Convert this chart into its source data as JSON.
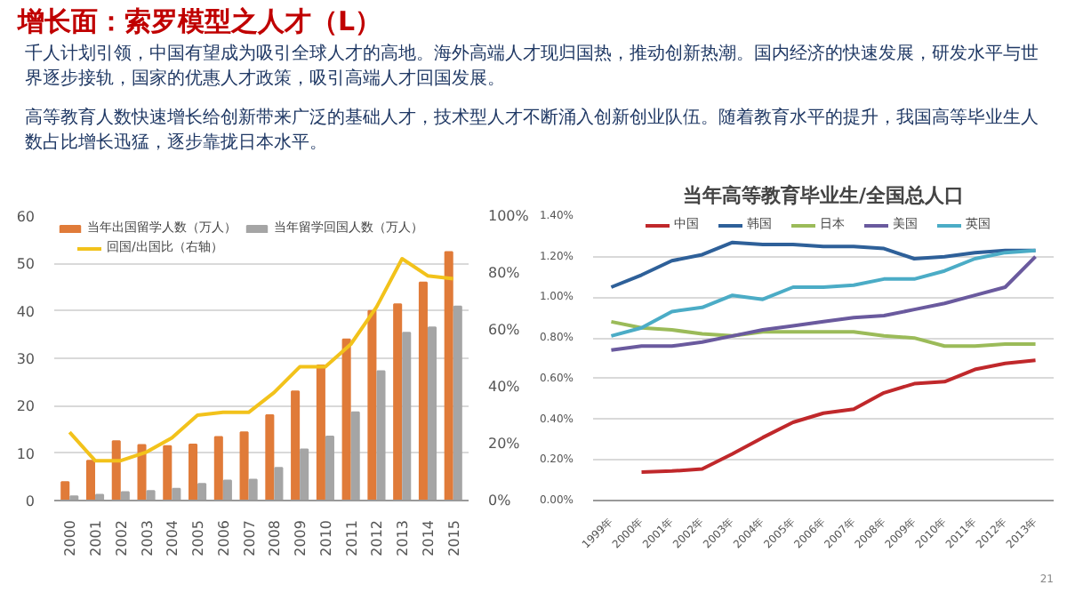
{
  "chart_data": [
    {
      "type": "bar",
      "title": "增长面：索罗模型之人才（L）",
      "annotations": [
        "千人计划引领，中国有望成为吸引全球人才的高地。海外高端人才现归国热，推动创新热潮。国内经济的快速发展，研发水平与世界逐步接轨，国家的优惠人才政策，吸引高端人才回国发展。",
        "高等教育人数快速增长给创新带来广泛的基础人才，技术型人才不断涌入创新创业队伍。随着教育水平的提升，我国高等毕业生人数占比增长迅猛，逐步靠拢日本水平。"
      ],
      "categories": [
        "2000",
        "2001",
        "2002",
        "2003",
        "2004",
        "2005",
        "2006",
        "2007",
        "2008",
        "2009",
        "2010",
        "2011",
        "2012",
        "2013",
        "2014",
        "2015"
      ],
      "series": [
        {
          "name": "当年出国留学人数（万人）",
          "color": "#e07b39",
          "values": [
            3.9,
            8.4,
            12.5,
            11.7,
            11.5,
            11.8,
            13.4,
            14.4,
            18.0,
            23.0,
            28.5,
            34.0,
            40.0,
            41.4,
            46.0,
            52.4
          ]
        },
        {
          "name": "当年留学回国人数（万人）",
          "color": "#a5a5a5",
          "values": [
            0.9,
            1.2,
            1.8,
            2.0,
            2.5,
            3.5,
            4.2,
            4.4,
            6.9,
            10.8,
            13.5,
            18.6,
            27.3,
            35.4,
            36.5,
            40.9
          ]
        },
        {
          "name": "回国/出国比（右轴）",
          "color": "#f2c21b",
          "type": "line",
          "axis": "y2",
          "values": [
            24,
            14,
            14,
            17,
            22,
            30,
            31,
            31,
            38,
            47,
            47,
            55,
            68,
            85,
            79,
            78
          ]
        }
      ],
      "ylim": [
        0,
        60
      ],
      "yticks": [
        0,
        10,
        20,
        30,
        40,
        50,
        60
      ],
      "y2lim": [
        0,
        100
      ],
      "y2ticks": [
        {
          "value": 0,
          "label": "0%"
        },
        {
          "value": 20,
          "label": "20%"
        },
        {
          "value": 40,
          "label": "40%"
        },
        {
          "value": 60,
          "label": "60%"
        },
        {
          "value": 80,
          "label": "80%"
        },
        {
          "value": 100,
          "label": "100%"
        }
      ],
      "grid": "y",
      "legend": "top"
    },
    {
      "type": "line",
      "title": "当年高等教育毕业生/全国总人口",
      "annotations": [
        "21"
      ],
      "categories": [
        "1999年",
        "2000年",
        "2001年",
        "2002年",
        "2003年",
        "2004年",
        "2005年",
        "2006年",
        "2007年",
        "2008年",
        "2009年",
        "2010年",
        "2011年",
        "2012年",
        "2013年"
      ],
      "series": [
        {
          "name": "中国",
          "color": "#c0282b",
          "values": [
            null,
            0.14,
            0.145,
            0.155,
            0.23,
            0.31,
            0.385,
            0.43,
            0.45,
            0.53,
            0.575,
            0.585,
            0.645,
            0.675,
            0.69
          ]
        },
        {
          "name": "韩国",
          "color": "#2e6099",
          "values": [
            1.05,
            1.11,
            1.18,
            1.21,
            1.27,
            1.26,
            1.26,
            1.25,
            1.25,
            1.24,
            1.19,
            1.2,
            1.22,
            1.23,
            1.23
          ]
        },
        {
          "name": "日本",
          "color": "#9bbb59",
          "values": [
            0.88,
            0.85,
            0.84,
            0.82,
            0.81,
            0.83,
            0.83,
            0.83,
            0.83,
            0.81,
            0.8,
            0.76,
            0.76,
            0.77,
            0.77
          ]
        },
        {
          "name": "美国",
          "color": "#6a5a9e",
          "values": [
            0.74,
            0.76,
            0.76,
            0.78,
            0.81,
            0.84,
            0.86,
            0.88,
            0.9,
            0.91,
            0.94,
            0.97,
            1.01,
            1.05,
            1.2
          ]
        },
        {
          "name": "英国",
          "color": "#4bacc6",
          "values": [
            0.81,
            0.85,
            0.93,
            0.95,
            1.01,
            0.99,
            1.05,
            1.05,
            1.06,
            1.09,
            1.09,
            1.13,
            1.19,
            1.22,
            1.23
          ]
        }
      ],
      "ylim": [
        0,
        1.4
      ],
      "yticks": [
        {
          "value": 0,
          "label": "0.00%"
        },
        {
          "value": 0.2,
          "label": "0.20%"
        },
        {
          "value": 0.4,
          "label": "0.40%"
        },
        {
          "value": 0.6,
          "label": "0.60%"
        },
        {
          "value": 0.8,
          "label": "0.80%"
        },
        {
          "value": 1.0,
          "label": "1.00%"
        },
        {
          "value": 1.2,
          "label": "1.20%"
        },
        {
          "value": 1.4,
          "label": "1.40%"
        }
      ],
      "grid": "y",
      "legend": "top"
    }
  ]
}
